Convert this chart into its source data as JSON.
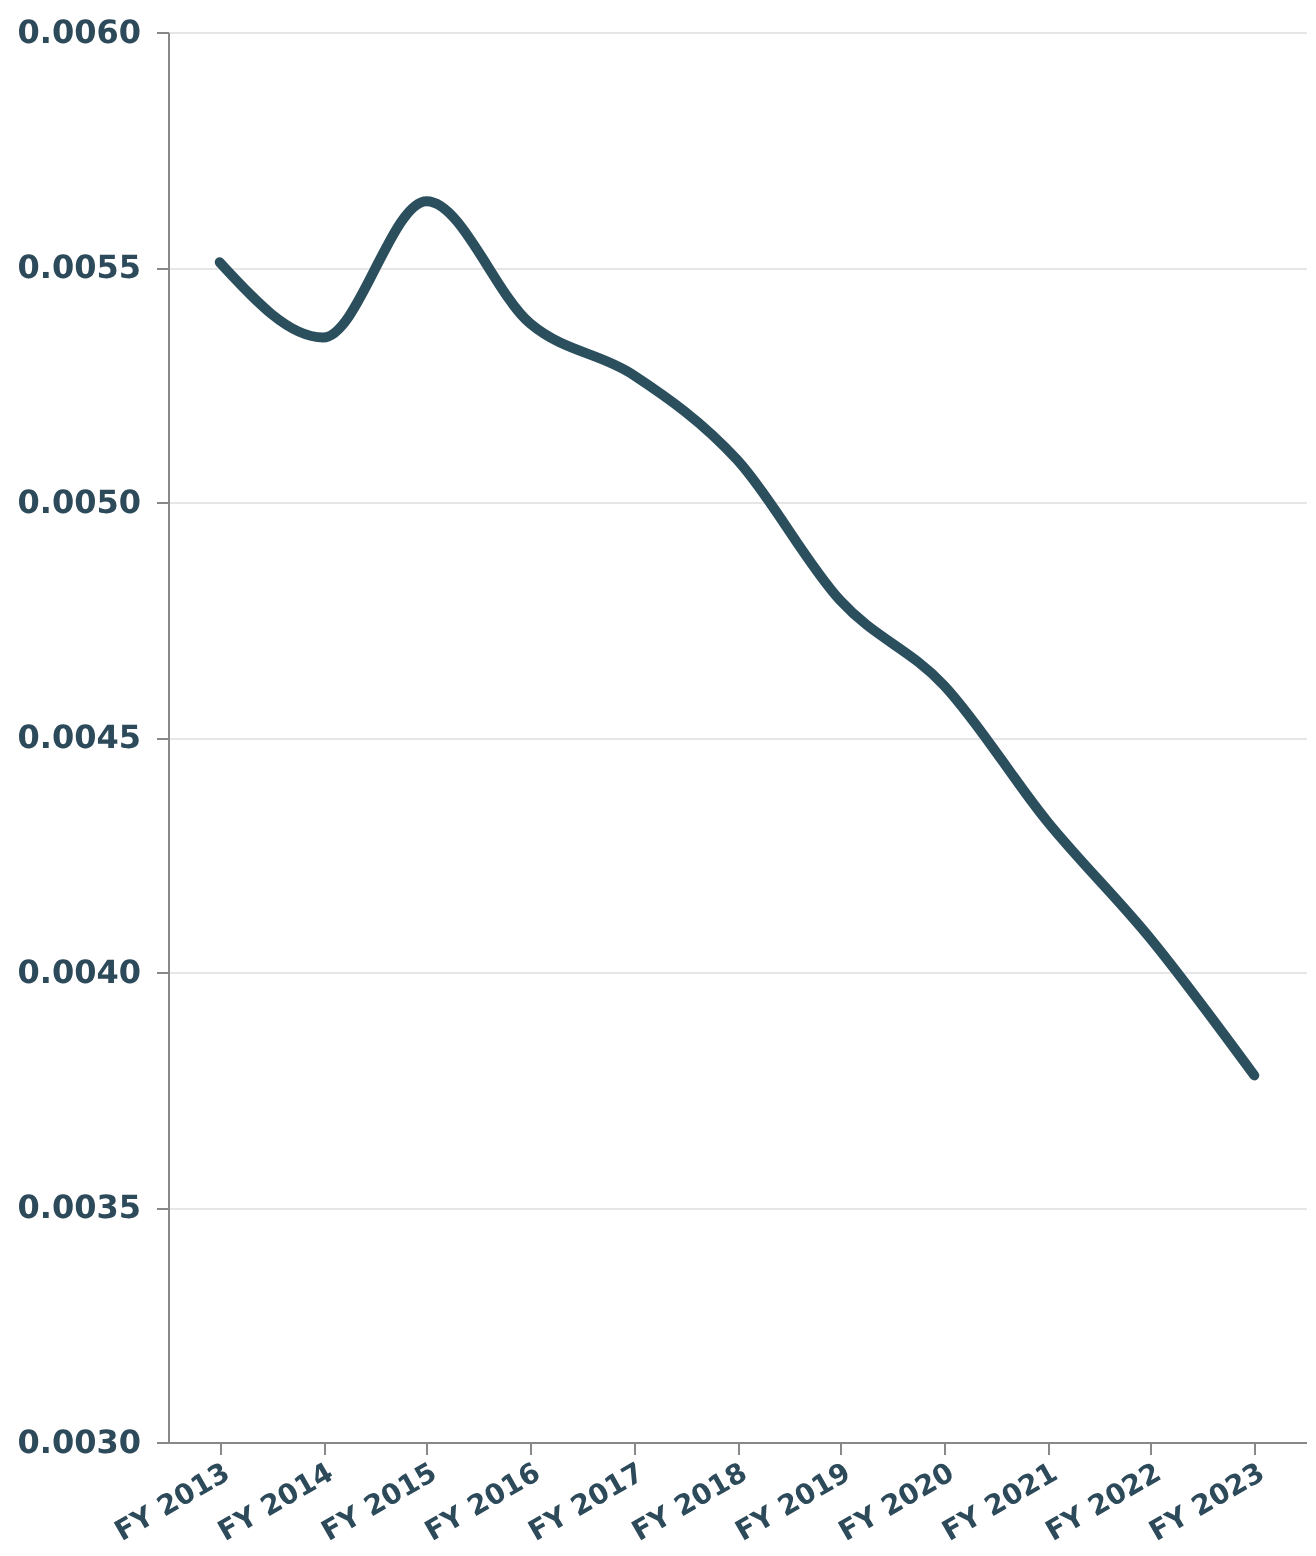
{
  "chart_data": {
    "type": "line",
    "categories": [
      "FY 2013",
      "FY 2014",
      "FY 2015",
      "FY 2016",
      "FY 2017",
      "FY 2018",
      "FY 2019",
      "FY 2020",
      "FY 2021",
      "FY 2022",
      "FY 2023"
    ],
    "series": [
      {
        "color": "#2c4f5e",
        "values": [
          0.00551,
          0.00535,
          0.00564,
          0.00538,
          0.00527,
          0.00509,
          0.00479,
          0.00461,
          0.00432,
          0.00407,
          0.00378
        ]
      }
    ],
    "ylim": [
      0.003,
      0.006
    ],
    "yticks": [
      {
        "value": 0.003,
        "label": "0.0030"
      },
      {
        "value": 0.0035,
        "label": "0.0035"
      },
      {
        "value": 0.004,
        "label": "0.0040"
      },
      {
        "value": 0.0045,
        "label": "0.0045"
      },
      {
        "value": 0.005,
        "label": "0.0050"
      },
      {
        "value": 0.0055,
        "label": "0.0055"
      },
      {
        "value": 0.006,
        "label": "0.0060"
      }
    ],
    "grid": "y",
    "marker": "none",
    "line_style": "solid"
  }
}
